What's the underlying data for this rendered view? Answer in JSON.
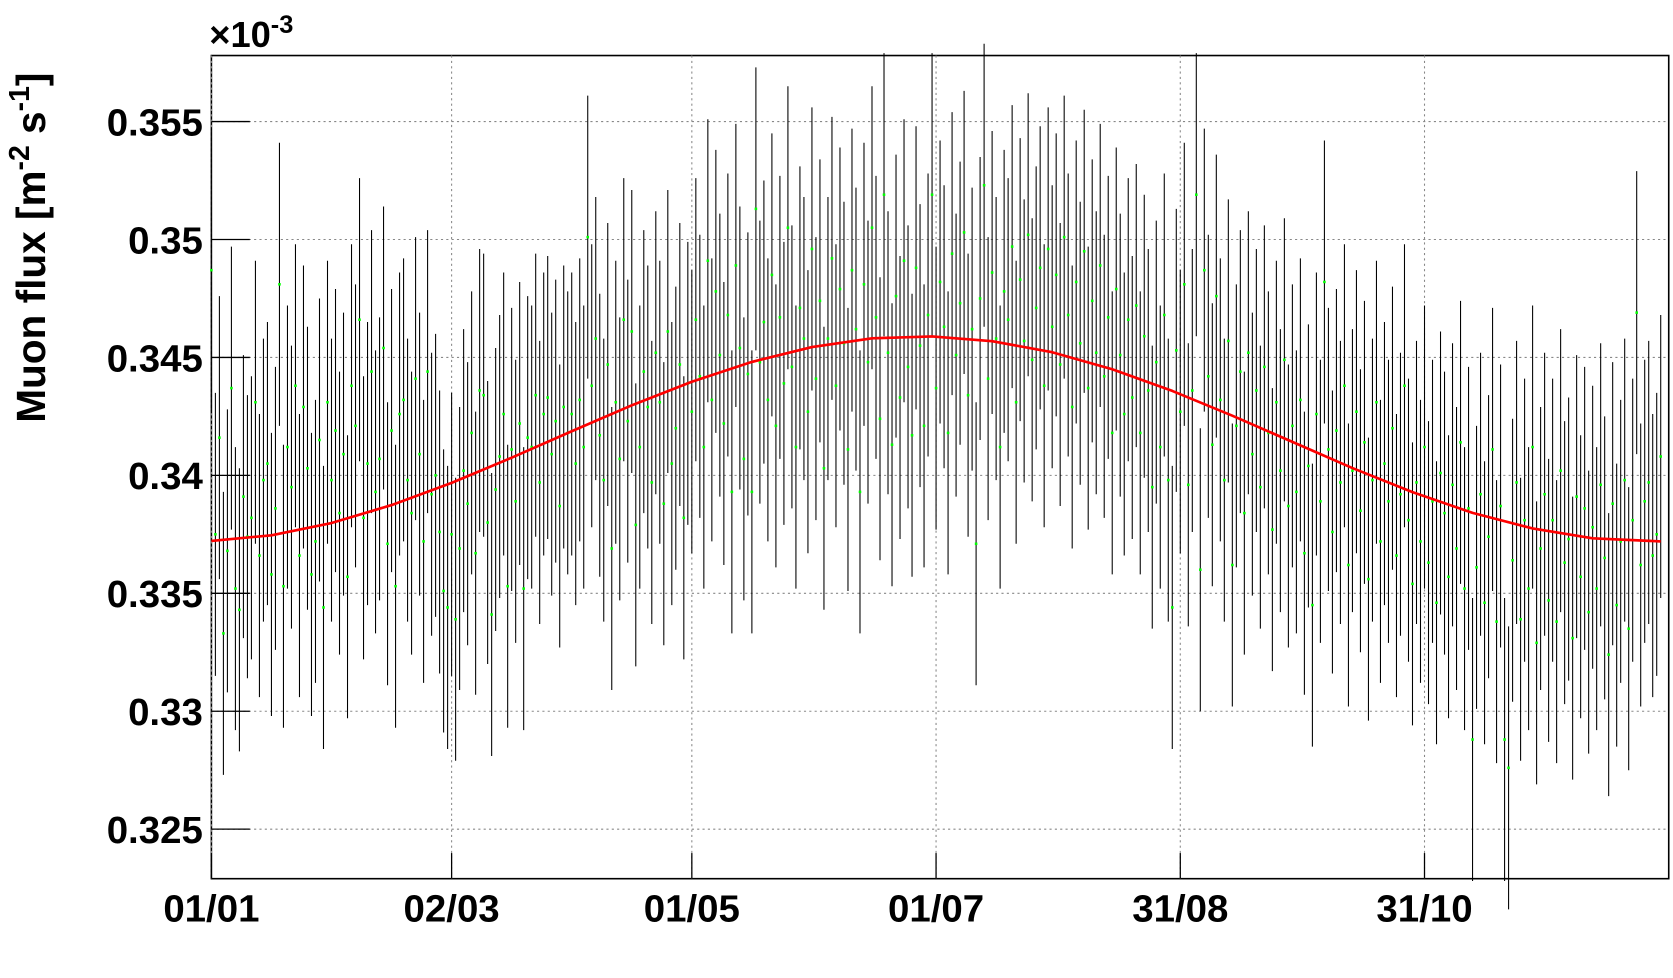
{
  "chart_data": {
    "type": "errorbar",
    "y_multiplier": [
      "×10",
      "-3"
    ],
    "y_label_parts": [
      "Muon flux [m",
      "-2",
      " s",
      "-1",
      "]"
    ],
    "xlim": [
      0,
      364
    ],
    "ylim": [
      0.3229,
      0.3578
    ],
    "xticks": [
      {
        "value": 0,
        "label": "01/01"
      },
      {
        "value": 60,
        "label": "02/03"
      },
      {
        "value": 120,
        "label": "01/05"
      },
      {
        "value": 181,
        "label": "01/07"
      },
      {
        "value": 242,
        "label": "31/08"
      },
      {
        "value": 303,
        "label": "31/10"
      }
    ],
    "yticks": [
      0.325,
      0.33,
      0.335,
      0.34,
      0.345,
      0.35,
      0.355
    ],
    "grid": true,
    "series": [
      {
        "color": "#00ff00",
        "error_color": "#000000",
        "error": 0.006,
        "x": [
          0,
          1,
          2,
          3,
          4,
          5,
          6,
          7,
          8,
          9,
          10,
          11,
          12,
          13,
          14,
          15,
          16,
          17,
          18,
          19,
          20,
          21,
          22,
          23,
          24,
          25,
          26,
          27,
          28,
          29,
          30,
          31,
          32,
          33,
          34,
          35,
          36,
          37,
          38,
          39,
          40,
          41,
          42,
          43,
          44,
          45,
          46,
          47,
          48,
          49,
          50,
          51,
          52,
          53,
          54,
          55,
          56,
          57,
          58,
          59,
          60,
          61,
          62,
          63,
          64,
          65,
          66,
          67,
          68,
          69,
          70,
          71,
          72,
          73,
          74,
          75,
          76,
          77,
          78,
          79,
          80,
          81,
          82,
          83,
          84,
          85,
          86,
          87,
          88,
          89,
          90,
          91,
          92,
          93,
          94,
          95,
          96,
          97,
          98,
          99,
          100,
          101,
          102,
          103,
          104,
          105,
          106,
          107,
          108,
          109,
          110,
          111,
          112,
          113,
          114,
          115,
          116,
          117,
          118,
          119,
          120,
          121,
          122,
          123,
          124,
          125,
          126,
          127,
          128,
          129,
          130,
          131,
          132,
          133,
          134,
          135,
          136,
          137,
          138,
          139,
          140,
          141,
          142,
          143,
          144,
          145,
          146,
          147,
          148,
          149,
          150,
          151,
          152,
          153,
          154,
          155,
          156,
          157,
          158,
          159,
          160,
          161,
          162,
          163,
          164,
          165,
          166,
          167,
          168,
          169,
          170,
          171,
          172,
          173,
          174,
          175,
          176,
          177,
          178,
          179,
          180,
          181,
          182,
          183,
          184,
          185,
          186,
          187,
          188,
          189,
          190,
          191,
          192,
          193,
          194,
          195,
          196,
          197,
          198,
          199,
          200,
          201,
          202,
          203,
          204,
          205,
          206,
          207,
          208,
          209,
          210,
          211,
          212,
          213,
          214,
          215,
          216,
          217,
          218,
          219,
          220,
          221,
          222,
          223,
          224,
          225,
          226,
          227,
          228,
          229,
          230,
          231,
          232,
          233,
          234,
          235,
          236,
          237,
          238,
          239,
          240,
          241,
          242,
          243,
          244,
          245,
          246,
          247,
          248,
          249,
          250,
          251,
          252,
          253,
          254,
          255,
          256,
          257,
          258,
          259,
          260,
          261,
          262,
          263,
          264,
          265,
          266,
          267,
          268,
          269,
          270,
          271,
          272,
          273,
          274,
          275,
          276,
          277,
          278,
          279,
          280,
          281,
          282,
          283,
          284,
          285,
          286,
          287,
          288,
          289,
          290,
          291,
          292,
          293,
          294,
          295,
          296,
          297,
          298,
          299,
          300,
          301,
          302,
          303,
          304,
          305,
          306,
          307,
          308,
          309,
          310,
          311,
          312,
          313,
          314,
          315,
          316,
          317,
          318,
          319,
          320,
          321,
          322,
          323,
          324,
          325,
          326,
          327,
          328,
          329,
          330,
          331,
          332,
          333,
          334,
          335,
          336,
          337,
          338,
          339,
          340,
          341,
          342,
          343,
          344,
          345,
          346,
          347,
          348,
          349,
          350,
          351,
          352,
          353,
          354,
          355,
          356,
          357,
          358,
          359,
          360,
          361,
          362
        ],
        "values": [
          0.3487,
          0.3375,
          0.3416,
          0.3333,
          0.3368,
          0.3437,
          0.3352,
          0.3343,
          0.3391,
          0.3374,
          0.3382,
          0.3431,
          0.3366,
          0.3398,
          0.3405,
          0.3358,
          0.3386,
          0.3481,
          0.3353,
          0.3412,
          0.3395,
          0.3438,
          0.3366,
          0.3429,
          0.3403,
          0.3358,
          0.3372,
          0.3415,
          0.3344,
          0.3431,
          0.3398,
          0.3419,
          0.3384,
          0.3409,
          0.3357,
          0.3438,
          0.3421,
          0.3466,
          0.3382,
          0.3405,
          0.3444,
          0.3393,
          0.3407,
          0.3454,
          0.3371,
          0.3419,
          0.3353,
          0.3426,
          0.3432,
          0.3398,
          0.3384,
          0.3441,
          0.3409,
          0.3372,
          0.3444,
          0.3392,
          0.34,
          0.3376,
          0.3351,
          0.3344,
          0.3375,
          0.3339,
          0.3369,
          0.3402,
          0.3388,
          0.3418,
          0.3367,
          0.3436,
          0.3434,
          0.338,
          0.3341,
          0.3394,
          0.3408,
          0.3426,
          0.3353,
          0.3411,
          0.3389,
          0.3422,
          0.3352,
          0.3416,
          0.3412,
          0.3434,
          0.3397,
          0.3426,
          0.3433,
          0.3409,
          0.3423,
          0.3387,
          0.3429,
          0.3418,
          0.3426,
          0.3405,
          0.3432,
          0.3412,
          0.3501,
          0.3438,
          0.3458,
          0.3417,
          0.3398,
          0.3447,
          0.3369,
          0.3431,
          0.3407,
          0.3466,
          0.3423,
          0.3461,
          0.3379,
          0.3412,
          0.3444,
          0.3429,
          0.3397,
          0.3452,
          0.3431,
          0.3388,
          0.3461,
          0.3405,
          0.342,
          0.3447,
          0.3382,
          0.3439,
          0.3427,
          0.3466,
          0.3442,
          0.3412,
          0.3491,
          0.3432,
          0.3478,
          0.3451,
          0.3422,
          0.3468,
          0.3393,
          0.3489,
          0.3454,
          0.3407,
          0.3443,
          0.3393,
          0.3513,
          0.3448,
          0.3465,
          0.3432,
          0.3485,
          0.3421,
          0.3467,
          0.3439,
          0.3505,
          0.3446,
          0.3412,
          0.3471,
          0.3458,
          0.3427,
          0.3496,
          0.3441,
          0.3474,
          0.3403,
          0.3458,
          0.3492,
          0.3438,
          0.3479,
          0.3456,
          0.3411,
          0.3487,
          0.3462,
          0.3393,
          0.3481,
          0.3448,
          0.3505,
          0.3467,
          0.3424,
          0.3519,
          0.3452,
          0.3413,
          0.3476,
          0.3433,
          0.3491,
          0.3446,
          0.3417,
          0.3488,
          0.3455,
          0.3421,
          0.3468,
          0.3519,
          0.3437,
          0.3482,
          0.3463,
          0.3418,
          0.3494,
          0.3451,
          0.3473,
          0.3503,
          0.3434,
          0.3462,
          0.3371,
          0.3475,
          0.3523,
          0.3441,
          0.3486,
          0.3458,
          0.3412,
          0.3478,
          0.3466,
          0.3497,
          0.3431,
          0.3483,
          0.3457,
          0.3502,
          0.3449,
          0.3471,
          0.3488,
          0.3438,
          0.3496,
          0.3463,
          0.3485,
          0.3447,
          0.3501,
          0.3468,
          0.3429,
          0.3482,
          0.3456,
          0.3495,
          0.3437,
          0.3474,
          0.3452,
          0.3489,
          0.3442,
          0.3467,
          0.3418,
          0.3479,
          0.3451,
          0.3426,
          0.3466,
          0.3433,
          0.3472,
          0.3418,
          0.3459,
          0.3436,
          0.3395,
          0.3448,
          0.3412,
          0.3468,
          0.3398,
          0.3344,
          0.3453,
          0.3427,
          0.3481,
          0.3396,
          0.3436,
          0.3519,
          0.336,
          0.3487,
          0.3442,
          0.3413,
          0.3476,
          0.3432,
          0.3398,
          0.3457,
          0.3362,
          0.3421,
          0.3444,
          0.3384,
          0.3452,
          0.3409,
          0.3436,
          0.3395,
          0.3446,
          0.3418,
          0.3377,
          0.3431,
          0.3402,
          0.3449,
          0.3387,
          0.3421,
          0.3393,
          0.3432,
          0.3367,
          0.3404,
          0.3345,
          0.3426,
          0.3389,
          0.3482,
          0.3411,
          0.3376,
          0.3419,
          0.3397,
          0.3438,
          0.3362,
          0.3402,
          0.3427,
          0.3385,
          0.3414,
          0.3356,
          0.3398,
          0.3431,
          0.3372,
          0.3405,
          0.3389,
          0.342,
          0.3366,
          0.3392,
          0.3438,
          0.3381,
          0.3354,
          0.3397,
          0.3372,
          0.3412,
          0.3363,
          0.3389,
          0.3346,
          0.3401,
          0.3384,
          0.3357,
          0.3396,
          0.3369,
          0.3414,
          0.3352,
          0.3386,
          0.3288,
          0.3361,
          0.3392,
          0.3346,
          0.3374,
          0.3411,
          0.3338,
          0.3387,
          0.3288,
          0.3276,
          0.3364,
          0.3397,
          0.3339,
          0.3381,
          0.3352,
          0.3412,
          0.3329,
          0.3369,
          0.3392,
          0.3347,
          0.3381,
          0.3338,
          0.3402,
          0.3363,
          0.3373,
          0.3331,
          0.3391,
          0.3357,
          0.3386,
          0.3342,
          0.3378,
          0.3352,
          0.3396,
          0.3365,
          0.3324,
          0.3388,
          0.3345,
          0.3372,
          0.3398,
          0.3335,
          0.3381,
          0.3469,
          0.3362,
          0.3389,
          0.3397,
          0.3366,
          0.3375,
          0.3408
        ]
      }
    ],
    "fit": {
      "color": "#ff0000",
      "x": [
        0,
        15,
        30,
        45,
        60,
        75,
        90,
        105,
        120,
        135,
        150,
        165,
        180,
        195,
        210,
        225,
        240,
        255,
        270,
        285,
        300,
        315,
        330,
        345,
        362
      ],
      "values": [
        0.33722,
        0.33746,
        0.33798,
        0.33874,
        0.33968,
        0.34075,
        0.34187,
        0.34297,
        0.34397,
        0.34481,
        0.34544,
        0.34581,
        0.34589,
        0.34569,
        0.34522,
        0.3445,
        0.34358,
        0.34253,
        0.34142,
        0.34031,
        0.33929,
        0.33841,
        0.33775,
        0.33733,
        0.3372
      ]
    }
  }
}
